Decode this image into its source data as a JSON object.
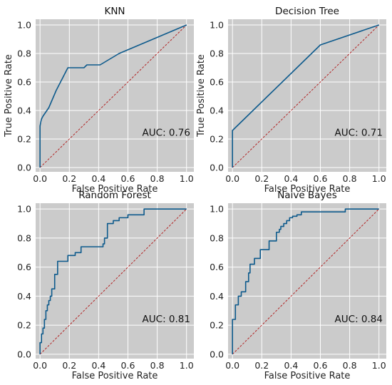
{
  "colors": {
    "roc": "#0d5a8c",
    "diagonal": "#b22222",
    "plot_background": "#cbcbcb",
    "grid": "#ffffff"
  },
  "chart_data": [
    {
      "type": "line",
      "title": "KNN",
      "xlabel": "False Positive Rate",
      "ylabel": "True Positive Rate",
      "xlim": [
        -0.03,
        1.05
      ],
      "ylim": [
        -0.03,
        1.04
      ],
      "xticks": [
        "0.0",
        "0.2",
        "0.4",
        "0.6",
        "0.8",
        "1.0"
      ],
      "yticks": [
        "0.0",
        "0.2",
        "0.4",
        "0.6",
        "0.8",
        "1.0"
      ],
      "grid": true,
      "annotation": "AUC: 0.76",
      "roc": {
        "x": [
          0.0,
          0.0,
          0.0,
          0.005,
          0.01,
          0.02,
          0.06,
          0.11,
          0.19,
          0.3,
          0.32,
          0.36,
          0.41,
          0.54,
          1.0
        ],
        "y": [
          0.0,
          0.23,
          0.29,
          0.32,
          0.34,
          0.36,
          0.42,
          0.54,
          0.7,
          0.7,
          0.72,
          0.72,
          0.72,
          0.8,
          1.0
        ]
      },
      "diagonal": {
        "x": [
          0,
          1
        ],
        "y": [
          0,
          1
        ]
      }
    },
    {
      "type": "line",
      "title": "Decision Tree",
      "xlabel": "False Positive Rate",
      "ylabel": "True Positive Rate",
      "xlim": [
        -0.03,
        1.05
      ],
      "ylim": [
        -0.03,
        1.04
      ],
      "xticks": [
        "0.0",
        "0.2",
        "0.4",
        "0.6",
        "0.8",
        "1.0"
      ],
      "yticks": [
        "0.0",
        "0.2",
        "0.4",
        "0.6",
        "0.8",
        "1.0"
      ],
      "grid": true,
      "annotation": "AUC: 0.71",
      "roc": {
        "x": [
          0.0,
          0.0,
          0.6,
          1.0
        ],
        "y": [
          0.0,
          0.26,
          0.86,
          1.0
        ]
      },
      "diagonal": {
        "x": [
          0,
          1
        ],
        "y": [
          0,
          1
        ]
      }
    },
    {
      "type": "line",
      "title": "Random Forest",
      "xlabel": "False Positive Rate",
      "ylabel": "",
      "xlim": [
        -0.03,
        1.05
      ],
      "ylim": [
        -0.03,
        1.04
      ],
      "xticks": [
        "0.0",
        "0.2",
        "0.4",
        "0.6",
        "0.8",
        "1.0"
      ],
      "yticks": [
        "0.0",
        "0.2",
        "0.4",
        "0.6",
        "0.8",
        "1.0"
      ],
      "grid": true,
      "annotation": "AUC: 0.81",
      "roc": {
        "x": [
          0.0,
          0.0,
          0.01,
          0.01,
          0.02,
          0.02,
          0.03,
          0.03,
          0.04,
          0.04,
          0.05,
          0.05,
          0.06,
          0.06,
          0.07,
          0.07,
          0.08,
          0.08,
          0.1,
          0.1,
          0.12,
          0.12,
          0.19,
          0.19,
          0.24,
          0.24,
          0.28,
          0.28,
          0.43,
          0.43,
          0.44,
          0.44,
          0.46,
          0.46,
          0.5,
          0.5,
          0.54,
          0.54,
          0.6,
          0.6,
          0.71,
          0.71,
          1.0
        ],
        "y": [
          0.0,
          0.08,
          0.08,
          0.14,
          0.14,
          0.18,
          0.18,
          0.24,
          0.24,
          0.3,
          0.3,
          0.34,
          0.34,
          0.37,
          0.37,
          0.4,
          0.4,
          0.45,
          0.45,
          0.55,
          0.55,
          0.64,
          0.64,
          0.68,
          0.68,
          0.7,
          0.7,
          0.74,
          0.74,
          0.76,
          0.76,
          0.8,
          0.8,
          0.9,
          0.9,
          0.92,
          0.92,
          0.94,
          0.94,
          0.96,
          0.96,
          1.0,
          1.0
        ]
      },
      "diagonal": {
        "x": [
          0,
          1
        ],
        "y": [
          0,
          1
        ]
      }
    },
    {
      "type": "line",
      "title": "Naive Bayes",
      "xlabel": "False Positive Rate",
      "ylabel": "",
      "xlim": [
        -0.03,
        1.05
      ],
      "ylim": [
        -0.03,
        1.04
      ],
      "xticks": [
        "0.0",
        "0.2",
        "0.4",
        "0.6",
        "0.8",
        "1.0"
      ],
      "yticks": [
        "0.0",
        "0.2",
        "0.4",
        "0.6",
        "0.8",
        "1.0"
      ],
      "grid": true,
      "annotation": "AUC: 0.84",
      "roc": {
        "x": [
          0.0,
          0.0,
          0.02,
          0.02,
          0.04,
          0.04,
          0.06,
          0.06,
          0.09,
          0.09,
          0.11,
          0.11,
          0.12,
          0.12,
          0.15,
          0.15,
          0.19,
          0.19,
          0.25,
          0.25,
          0.3,
          0.3,
          0.32,
          0.32,
          0.33,
          0.33,
          0.35,
          0.35,
          0.37,
          0.37,
          0.39,
          0.39,
          0.41,
          0.41,
          0.44,
          0.44,
          0.47,
          0.47,
          0.77,
          0.77,
          1.0
        ],
        "y": [
          0.0,
          0.24,
          0.24,
          0.34,
          0.34,
          0.4,
          0.4,
          0.43,
          0.43,
          0.5,
          0.5,
          0.56,
          0.56,
          0.62,
          0.62,
          0.66,
          0.66,
          0.72,
          0.72,
          0.78,
          0.78,
          0.84,
          0.84,
          0.86,
          0.86,
          0.88,
          0.88,
          0.9,
          0.9,
          0.92,
          0.92,
          0.94,
          0.94,
          0.95,
          0.95,
          0.96,
          0.96,
          0.98,
          0.98,
          1.0,
          1.0
        ]
      },
      "diagonal": {
        "x": [
          0,
          1
        ],
        "y": [
          0,
          1
        ]
      }
    }
  ]
}
